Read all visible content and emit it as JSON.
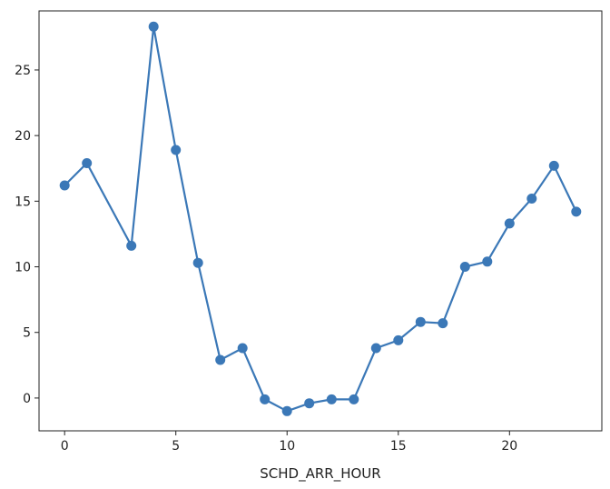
{
  "chart_data": {
    "type": "line",
    "title": "",
    "xlabel": "SCHD_ARR_HOUR",
    "ylabel": "",
    "xlim": [
      -1.15,
      24.15
    ],
    "ylim": [
      -2.5,
      29.5
    ],
    "xticks": [
      0,
      5,
      10,
      15,
      20
    ],
    "yticks": [
      0,
      5,
      10,
      15,
      20,
      25
    ],
    "grid": false,
    "legend": "none",
    "series": [
      {
        "color": "#3b78b7",
        "marker": "circle",
        "x": [
          0,
          1,
          3,
          4,
          5,
          6,
          7,
          8,
          9,
          10,
          11,
          12,
          13,
          14,
          15,
          16,
          17,
          18,
          19,
          20,
          21,
          22,
          23
        ],
        "y": [
          16.2,
          17.9,
          11.6,
          28.3,
          18.9,
          10.3,
          2.9,
          3.8,
          -0.1,
          -1.0,
          -0.4,
          -0.1,
          -0.1,
          3.8,
          4.4,
          5.8,
          5.7,
          10.0,
          10.4,
          13.3,
          15.2,
          17.7,
          14.2
        ]
      }
    ]
  }
}
